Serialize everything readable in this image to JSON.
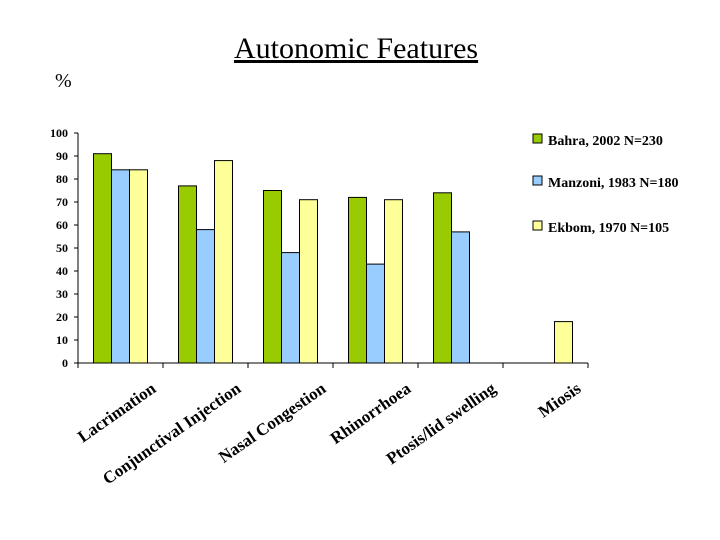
{
  "chart_data": {
    "type": "bar",
    "title": "Autonomic Features",
    "ylabel": "%",
    "xlabel": "",
    "ylim": [
      0,
      100
    ],
    "y_ticks": [
      0,
      10,
      20,
      30,
      40,
      50,
      60,
      70,
      80,
      90,
      100
    ],
    "categories": [
      "Lacrimation",
      "Conjunctival Injection",
      "Nasal Congestion",
      "Rhinorrhoea",
      "Ptosis/lid swelling",
      "Miosis"
    ],
    "series": [
      {
        "name": "Bahra, 2002  N=230",
        "color": "#99cc00",
        "values": [
          91,
          77,
          75,
          72,
          74,
          null
        ]
      },
      {
        "name": "Manzoni, 1983 N=180",
        "color": "#99ccff",
        "values": [
          84,
          58,
          48,
          43,
          57,
          null
        ]
      },
      {
        "name": "Ekbom, 1970 N=105",
        "color": "#ffff99",
        "values": [
          84,
          88,
          71,
          71,
          null,
          18
        ]
      }
    ],
    "legend_position": "right",
    "grid": false
  }
}
